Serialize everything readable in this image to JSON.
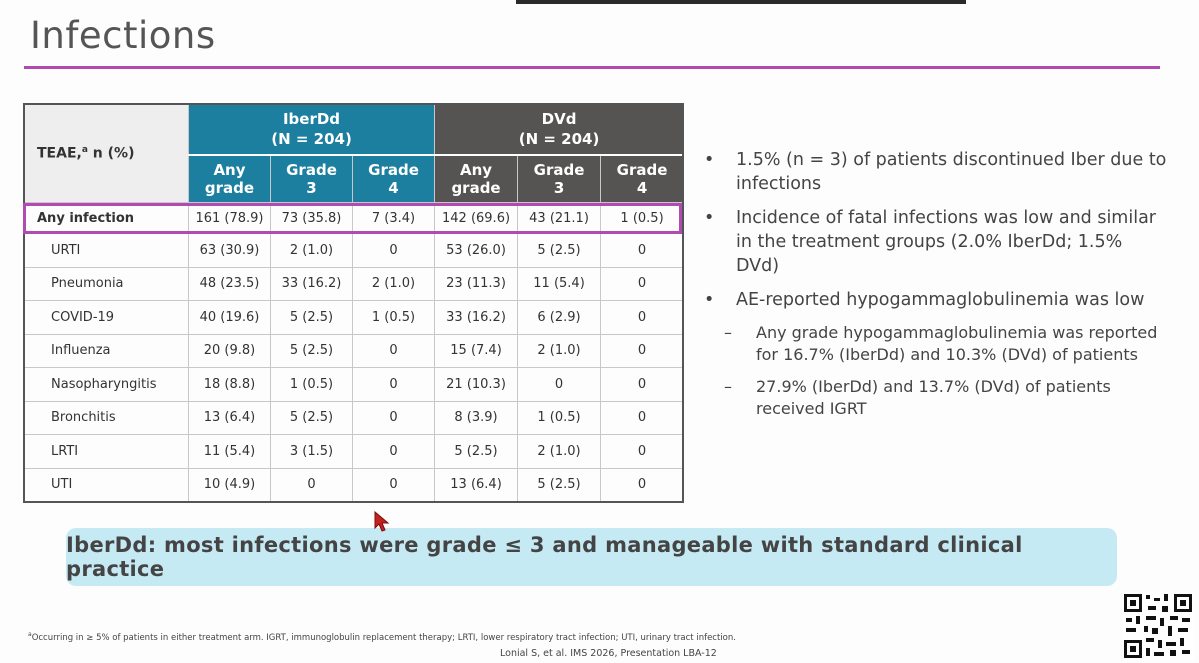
{
  "title": "Infections",
  "table": {
    "teae_header": "TEAE,",
    "teae_sup": "a",
    "teae_tail": " n (%)",
    "groups": [
      {
        "name": "IberDd",
        "n": "(N = 204)"
      },
      {
        "name": "DVd",
        "n": "(N = 204)"
      }
    ],
    "subheaders": [
      [
        "Any",
        "grade"
      ],
      [
        "Grade",
        "3"
      ],
      [
        "Grade",
        "4"
      ],
      [
        "Any",
        "grade"
      ],
      [
        "Grade",
        "3"
      ],
      [
        "Grade",
        "4"
      ]
    ],
    "any_infection": {
      "label": "Any infection",
      "values": [
        "161 (78.9)",
        "73 (35.8)",
        "7 (3.4)",
        "142 (69.6)",
        "43 (21.1)",
        "1 (0.5)"
      ]
    },
    "rows": [
      {
        "label": "URTI",
        "values": [
          "63 (30.9)",
          "2 (1.0)",
          "0",
          "53 (26.0)",
          "5 (2.5)",
          "0"
        ]
      },
      {
        "label": "Pneumonia",
        "values": [
          "48 (23.5)",
          "33 (16.2)",
          "2 (1.0)",
          "23 (11.3)",
          "11 (5.4)",
          "0"
        ]
      },
      {
        "label": "COVID-19",
        "values": [
          "40 (19.6)",
          "5 (2.5)",
          "1 (0.5)",
          "33 (16.2)",
          "6 (2.9)",
          "0"
        ]
      },
      {
        "label": "Influenza",
        "values": [
          "20 (9.8)",
          "5 (2.5)",
          "0",
          "15 (7.4)",
          "2 (1.0)",
          "0"
        ]
      },
      {
        "label": "Nasopharyngitis",
        "values": [
          "18 (8.8)",
          "1 (0.5)",
          "0",
          "21 (10.3)",
          "0",
          "0"
        ]
      },
      {
        "label": "Bronchitis",
        "values": [
          "13 (6.4)",
          "5 (2.5)",
          "0",
          "8 (3.9)",
          "1 (0.5)",
          "0"
        ]
      },
      {
        "label": "LRTI",
        "values": [
          "11 (5.4)",
          "3 (1.5)",
          "0",
          "5 (2.5)",
          "2 (1.0)",
          "0"
        ]
      },
      {
        "label": "UTI",
        "values": [
          "10 (4.9)",
          "0",
          "0",
          "13 (6.4)",
          "5 (2.5)",
          "0"
        ]
      }
    ]
  },
  "bullets": [
    {
      "type": "bullet",
      "text": "1.5% (n = 3) of patients discontinued Iber due to infections"
    },
    {
      "type": "bullet",
      "text": "Incidence of fatal infections was low and similar in the treatment groups (2.0% IberDd; 1.5% DVd)"
    },
    {
      "type": "bullet",
      "text": "AE-reported hypogammaglobulinemia was low"
    },
    {
      "type": "sub",
      "text": "Any grade hypogammaglobulinemia was reported for 16.7% (IberDd) and 10.3% (DVd) of patients"
    },
    {
      "type": "sub",
      "text": "27.9% (IberDd) and 13.7% (DVd) of patients received IGRT"
    }
  ],
  "callout": "IberDd: most infections were grade ≤ 3 and manageable with standard clinical practice",
  "footnote_sup": "a",
  "footnote": "Occurring in ≥ 5% of patients in either treatment arm. IGRT, immunoglobulin replacement therapy; LRTI, lower respiratory tract infection; UTI, urinary tract infection.",
  "citation": "Lonial S, et al. IMS 2026, Presentation LBA-12",
  "colors": {
    "accent": "#b04bb2",
    "iber_header": "#1d7fa0",
    "dvd_header": "#565453",
    "callout_bg": "#c6eaf4"
  },
  "icons": {
    "cursor": "mouse-pointer-icon",
    "qr": "qr-code-icon"
  }
}
